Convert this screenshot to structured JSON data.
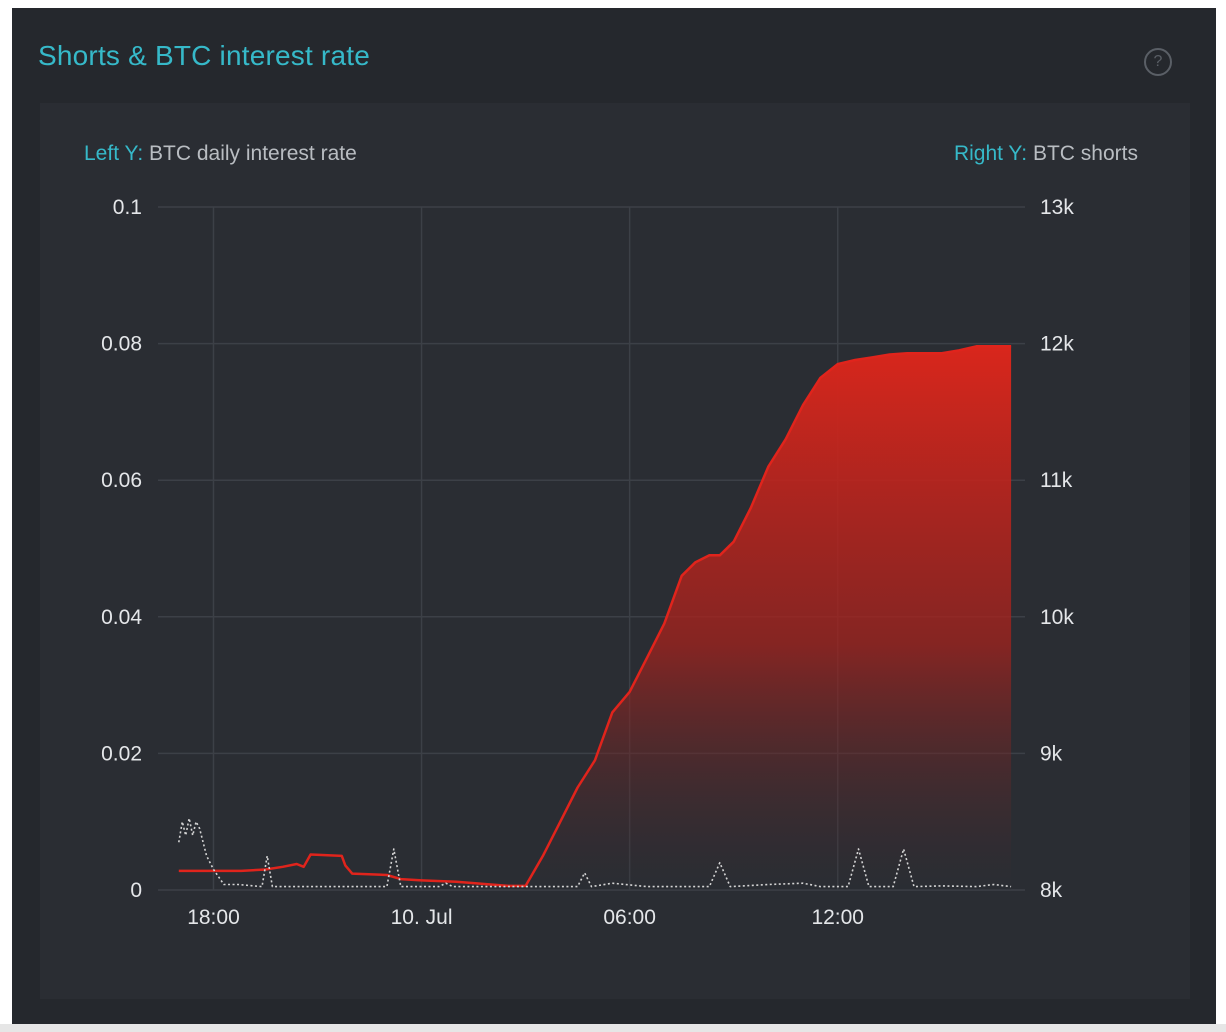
{
  "panel": {
    "title": "Shorts & BTC interest rate",
    "help_label": "?"
  },
  "axes": {
    "left_key": "Left Y:",
    "left_label": "BTC daily interest rate",
    "right_key": "Right Y:",
    "right_label": "BTC shorts"
  },
  "colors": {
    "accent": "#36b9c9",
    "shorts": "#e0241c",
    "rate": "#d4d4d4",
    "grid": "#3c4047",
    "text": "#e4e6e9"
  },
  "chart_data": {
    "type": "area",
    "x_unit": "hours relative to 10 Jul 00:00",
    "x_ticks": [
      {
        "x": -6,
        "label": "18:00"
      },
      {
        "x": 0,
        "label": "10. Jul"
      },
      {
        "x": 6,
        "label": "06:00"
      },
      {
        "x": 12,
        "label": "12:00"
      }
    ],
    "xlim": [
      -7.6,
      17.4
    ],
    "left_y": {
      "label": "BTC daily interest rate",
      "ylim": [
        0,
        0.1
      ],
      "ticks": [
        {
          "v": 0,
          "label": "0"
        },
        {
          "v": 0.02,
          "label": "0.02"
        },
        {
          "v": 0.04,
          "label": "0.04"
        },
        {
          "v": 0.06,
          "label": "0.06"
        },
        {
          "v": 0.08,
          "label": "0.08"
        },
        {
          "v": 0.1,
          "label": "0.1"
        }
      ]
    },
    "right_y": {
      "label": "BTC shorts",
      "ylim": [
        8000,
        13000
      ],
      "ticks": [
        {
          "v": 8000,
          "label": "8k"
        },
        {
          "v": 9000,
          "label": "9k"
        },
        {
          "v": 10000,
          "label": "10k"
        },
        {
          "v": 11000,
          "label": "11k"
        },
        {
          "v": 12000,
          "label": "12k"
        },
        {
          "v": 13000,
          "label": "13k"
        }
      ]
    },
    "grid": true,
    "series": [
      {
        "name": "BTC shorts",
        "axis": "right",
        "style": "area",
        "points": [
          [
            -7.0,
            8140
          ],
          [
            -5.2,
            8140
          ],
          [
            -4.5,
            8150
          ],
          [
            -4.0,
            8170
          ],
          [
            -3.6,
            8190
          ],
          [
            -3.4,
            8170
          ],
          [
            -3.2,
            8260
          ],
          [
            -2.3,
            8250
          ],
          [
            -2.2,
            8180
          ],
          [
            -2.0,
            8120
          ],
          [
            -1.0,
            8110
          ],
          [
            -0.6,
            8080
          ],
          [
            0.0,
            8070
          ],
          [
            1.0,
            8060
          ],
          [
            2.0,
            8040
          ],
          [
            2.5,
            8030
          ],
          [
            3.0,
            8030
          ],
          [
            3.5,
            8250
          ],
          [
            4.0,
            8500
          ],
          [
            4.5,
            8750
          ],
          [
            5.0,
            8950
          ],
          [
            5.5,
            9300
          ],
          [
            6.0,
            9450
          ],
          [
            6.5,
            9700
          ],
          [
            7.0,
            9950
          ],
          [
            7.5,
            10300
          ],
          [
            7.9,
            10400
          ],
          [
            8.3,
            10450
          ],
          [
            8.6,
            10450
          ],
          [
            9.0,
            10550
          ],
          [
            9.5,
            10800
          ],
          [
            10.0,
            11100
          ],
          [
            10.5,
            11300
          ],
          [
            11.0,
            11550
          ],
          [
            11.5,
            11750
          ],
          [
            12.0,
            11850
          ],
          [
            12.5,
            11880
          ],
          [
            13.0,
            11900
          ],
          [
            13.5,
            11920
          ],
          [
            14.0,
            11930
          ],
          [
            15.0,
            11930
          ],
          [
            15.5,
            11950
          ],
          [
            16.0,
            11980
          ],
          [
            16.5,
            11980
          ],
          [
            17.0,
            11980
          ]
        ]
      },
      {
        "name": "BTC daily interest rate",
        "axis": "left",
        "style": "dotted",
        "points": [
          [
            -7.0,
            0.007
          ],
          [
            -6.9,
            0.01
          ],
          [
            -6.8,
            0.008
          ],
          [
            -6.7,
            0.0105
          ],
          [
            -6.6,
            0.008
          ],
          [
            -6.5,
            0.01
          ],
          [
            -6.4,
            0.009
          ],
          [
            -6.2,
            0.005
          ],
          [
            -6.0,
            0.003
          ],
          [
            -5.7,
            0.0008
          ],
          [
            -5.3,
            0.0008
          ],
          [
            -4.6,
            0.0005
          ],
          [
            -4.45,
            0.005
          ],
          [
            -4.3,
            0.0005
          ],
          [
            -1.0,
            0.0005
          ],
          [
            -0.8,
            0.006
          ],
          [
            -0.6,
            0.0005
          ],
          [
            0.5,
            0.0005
          ],
          [
            0.7,
            0.001
          ],
          [
            0.9,
            0.0005
          ],
          [
            4.5,
            0.0005
          ],
          [
            4.7,
            0.0025
          ],
          [
            4.9,
            0.0005
          ],
          [
            5.5,
            0.001
          ],
          [
            6.5,
            0.0005
          ],
          [
            7.5,
            0.0005
          ],
          [
            8.3,
            0.0005
          ],
          [
            8.6,
            0.004
          ],
          [
            8.9,
            0.0005
          ],
          [
            10.0,
            0.0008
          ],
          [
            11.0,
            0.001
          ],
          [
            11.5,
            0.0005
          ],
          [
            12.3,
            0.0005
          ],
          [
            12.6,
            0.006
          ],
          [
            12.9,
            0.0005
          ],
          [
            13.6,
            0.0005
          ],
          [
            13.9,
            0.006
          ],
          [
            14.2,
            0.0005
          ],
          [
            15.0,
            0.0006
          ],
          [
            16.0,
            0.0005
          ],
          [
            16.5,
            0.0008
          ],
          [
            17.0,
            0.0005
          ]
        ]
      }
    ]
  }
}
